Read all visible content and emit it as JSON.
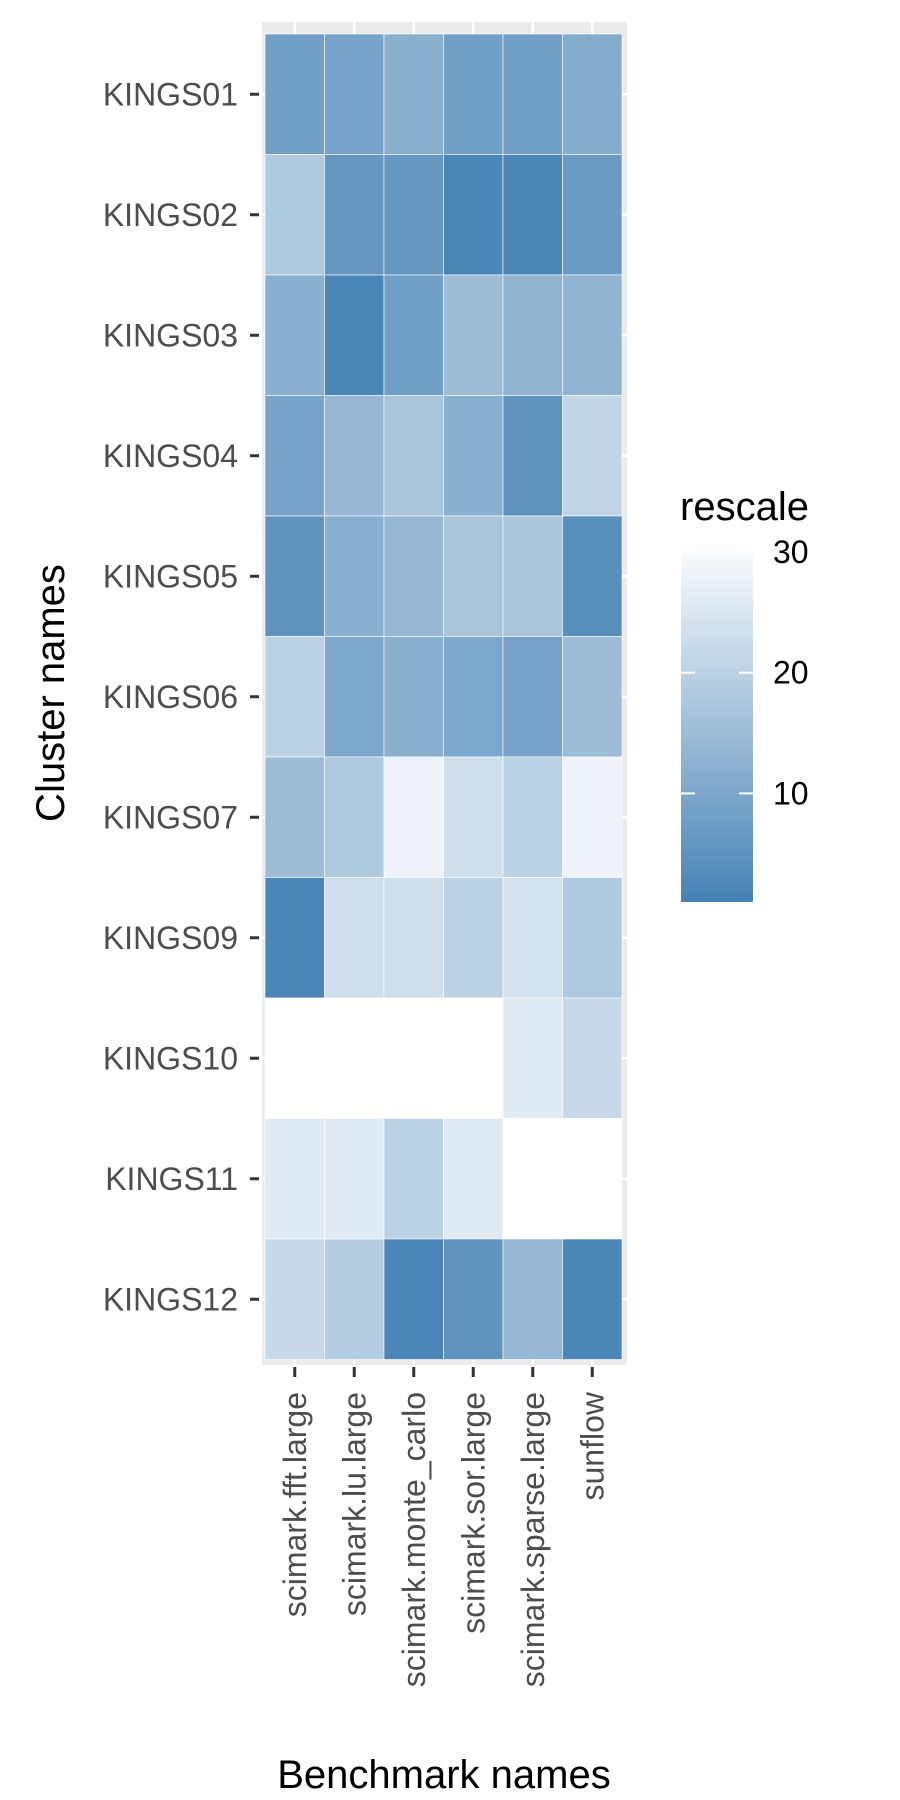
{
  "chart_data": {
    "type": "heatmap",
    "xlabel": "Benchmark names",
    "ylabel": "Cluster names",
    "x": [
      "scimark.fft.large",
      "scimark.lu.large",
      "scimark.monte_carlo",
      "scimark.sor.large",
      "scimark.sparse.large",
      "sunflow"
    ],
    "y": [
      "KINGS01",
      "KINGS02",
      "KINGS03",
      "KINGS04",
      "KINGS05",
      "KINGS06",
      "KINGS07",
      "KINGS09",
      "KINGS10",
      "KINGS11",
      "KINGS12"
    ],
    "values": [
      [
        8,
        9,
        12,
        8,
        8,
        11
      ],
      [
        18,
        6,
        6,
        2,
        2,
        7
      ],
      [
        12,
        2,
        8,
        15,
        13,
        13
      ],
      [
        9,
        14,
        17,
        12,
        5,
        21
      ],
      [
        5,
        12,
        14,
        17,
        17,
        4
      ],
      [
        20,
        10,
        12,
        10,
        9,
        15
      ],
      [
        15,
        18,
        28,
        23,
        20,
        28
      ],
      [
        2,
        23,
        23,
        20,
        24,
        18
      ],
      [
        null,
        null,
        null,
        null,
        26,
        22
      ],
      [
        26,
        26,
        20,
        26,
        null,
        null
      ],
      [
        22,
        19,
        2,
        5,
        14,
        2
      ]
    ],
    "legend": {
      "title": "rescale",
      "ticks": [
        30,
        20,
        10
      ],
      "range": [
        1,
        31
      ],
      "low_color": "#4682b4",
      "high_color": "#ffffff",
      "placement": "right"
    },
    "panel_background": "#ebebeb",
    "na_color": "#ffffff"
  }
}
